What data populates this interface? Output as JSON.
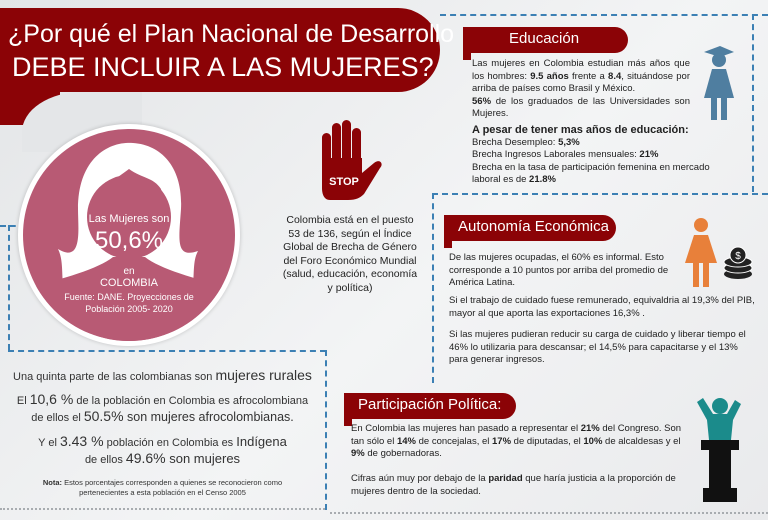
{
  "title": {
    "line1": "¿Por qué el Plan Nacional de Desarrollo",
    "line2": "DEBE INCLUIR A LAS MUJERES?"
  },
  "circle": {
    "intro": "Las Mujeres son",
    "value": "50,6%",
    "en": "en",
    "country": "COLOMBIA",
    "source": "Fuente: DANE. Proyecciones de Población 2005- 2020"
  },
  "stop": {
    "label": "STOP",
    "text": "Colombia está en el puesto 53 de 136, según el Índice Global de Brecha de Género del Foro Económico Mundial (salud, educación, economía y política)"
  },
  "left": {
    "rural_pre": "Una quinta parte de las colombianas son ",
    "rural_em": "mujeres rurales",
    "afro_a": "El ",
    "afro_v1": "10,6 %",
    "afro_b": " de la población en Colombia es afrocolombiana",
    "afro_c": "de ellos el ",
    "afro_v2": "50.5%",
    "afro_d": "  son mujeres afrocolombianas.",
    "ind_a": "Y el ",
    "ind_v1": "3.43 %",
    "ind_b": " población en Colombia es ",
    "ind_em": "Indígena",
    "ind_c": "de ellos ",
    "ind_v2": "49.6%",
    "ind_d": " son mujeres",
    "note_label": "Nota:",
    "note": " Estos porcentajes corresponden a quienes se reconocieron como pertenecientes a esta población en el Censo 2005"
  },
  "educacion": {
    "heading": "Educación",
    "p1a": "Las mujeres en Colombia estudian más años que los hombres: ",
    "p1b": "9.5 años",
    "p1c": " frente a ",
    "p1d": "8.4",
    "p1e": ", situándose por arriba de países como Brasil y México.",
    "p2a": "56%",
    "p2b": " de los graduados de las Universidades son Mujeres.",
    "sub": "A pesar de tener mas años de educación:",
    "l1a": "Brecha Desempleo: ",
    "l1b": "5,3%",
    "l2a": "Brecha Ingresos Laborales mensuales: ",
    "l2b": "21%",
    "l3a": "Brecha en la tasa de participación femenina en mercado laboral es de ",
    "l3b": "21.8%"
  },
  "autonomia": {
    "heading": "Autonomía Económica",
    "p1": "De las mujeres ocupadas, el 60% es informal. Esto corresponde a 10 puntos por arriba del promedio de América Latina.",
    "p2": "Si el trabajo de cuidado fuese remunerado, equivaldria al 19,3% del PIB, mayor al que aporta las exportaciones 16,3% .",
    "p3": "Si las mujeres pudieran reducir su carga de cuidado y liberar tiempo el 46% lo utilizaria para descansar; el 14,5% para capacitarse y el 13% para generar ingresos.",
    "coin_symbol": "$"
  },
  "politica": {
    "heading": "Participación Política:",
    "p1a": "En Colombia las mujeres han pasado a representar el ",
    "p1b": "21%",
    "p1c": " del Congreso. Son tan sólo el ",
    "p1d": "14%",
    "p1e": " de concejalas, el ",
    "p1f": "17%",
    "p1g": " de diputadas, el ",
    "p1h": "10%",
    "p1i": " de alcaldesas y el ",
    "p1j": "9%",
    "p1k": " de gobernadoras.",
    "p2a": "Cifras aún muy por debajo de la ",
    "p2b": "paridad",
    "p2c": " que haría justicia a la proporción de mujeres dentro de la sociedad."
  },
  "colors": {
    "brand": "#8b0306",
    "circle": "#b85a74",
    "dash": "#3c80b4",
    "edu_icon": "#4f7ea0",
    "auto_icon": "#e8803a",
    "pol_icon": "#1b8b8b"
  }
}
